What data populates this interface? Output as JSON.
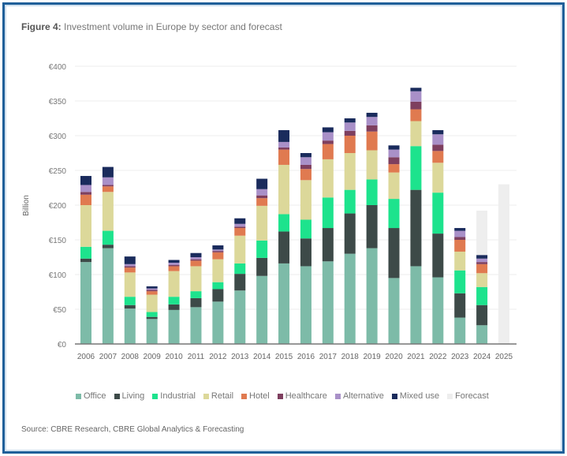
{
  "title_bold": "Figure 4:",
  "title_rest": " Investment volume in Europe by sector and forecast",
  "source": "Source: CBRE Research, CBRE Global Analytics & Forecasting",
  "chart_data": {
    "type": "bar",
    "stacked": true,
    "ylabel": "Billion",
    "ylim": [
      0,
      400
    ],
    "yticks": [
      "€0",
      "€50",
      "€100",
      "€150",
      "€200",
      "€250",
      "€300",
      "€350",
      "€400"
    ],
    "ytick_values": [
      0,
      50,
      100,
      150,
      200,
      250,
      300,
      350,
      400
    ],
    "grid": true,
    "legend_position": "bottom",
    "categories": [
      "2006",
      "2007",
      "2008",
      "2009",
      "2010",
      "2011",
      "2012",
      "2013",
      "2014",
      "2015",
      "2016",
      "2017",
      "2018",
      "2019",
      "2020",
      "2021",
      "2022",
      "2023",
      "2024",
      "2025"
    ],
    "series": [
      {
        "name": "Office",
        "color": "#7dbba8",
        "values": [
          118,
          138,
          51,
          36,
          49,
          53,
          61,
          77,
          98,
          116,
          112,
          119,
          130,
          138,
          95,
          112,
          96,
          38,
          27,
          null
        ]
      },
      {
        "name": "Living",
        "color": "#3d4a48",
        "values": [
          5,
          5,
          5,
          3,
          8,
          13,
          18,
          24,
          26,
          46,
          40,
          48,
          58,
          62,
          72,
          110,
          63,
          35,
          29,
          null
        ]
      },
      {
        "name": "Industrial",
        "color": "#1de38d",
        "values": [
          17,
          20,
          12,
          7,
          11,
          10,
          10,
          15,
          25,
          25,
          27,
          44,
          34,
          37,
          42,
          63,
          59,
          33,
          26,
          null
        ]
      },
      {
        "name": "Retail",
        "color": "#dcd89a",
        "values": [
          60,
          56,
          35,
          25,
          37,
          36,
          33,
          40,
          50,
          71,
          57,
          55,
          53,
          42,
          38,
          36,
          43,
          27,
          20,
          null
        ]
      },
      {
        "name": "Hotel",
        "color": "#e07a50",
        "values": [
          15,
          8,
          7,
          5,
          7,
          8,
          10,
          11,
          11,
          22,
          16,
          22,
          25,
          27,
          12,
          17,
          17,
          17,
          13,
          null
        ]
      },
      {
        "name": "Healthcare",
        "color": "#7e3f5f",
        "values": [
          4,
          2,
          2,
          2,
          2,
          2,
          2,
          2,
          4,
          3,
          6,
          5,
          7,
          9,
          10,
          11,
          9,
          4,
          3,
          null
        ]
      },
      {
        "name": "Alternative",
        "color": "#a990c8",
        "values": [
          10,
          11,
          3,
          2,
          3,
          3,
          2,
          4,
          9,
          8,
          11,
          12,
          12,
          12,
          11,
          15,
          15,
          9,
          5,
          null
        ]
      },
      {
        "name": "Mixed use",
        "color": "#1a2b5c",
        "values": [
          13,
          15,
          11,
          3,
          4,
          6,
          6,
          8,
          15,
          17,
          6,
          7,
          6,
          6,
          6,
          5,
          6,
          4,
          5,
          null
        ]
      }
    ],
    "forecast": {
      "name": "Forecast",
      "color": "#eeeeee",
      "values": [
        null,
        null,
        null,
        null,
        null,
        null,
        null,
        null,
        null,
        null,
        null,
        null,
        null,
        null,
        null,
        null,
        null,
        null,
        192,
        230
      ]
    }
  }
}
